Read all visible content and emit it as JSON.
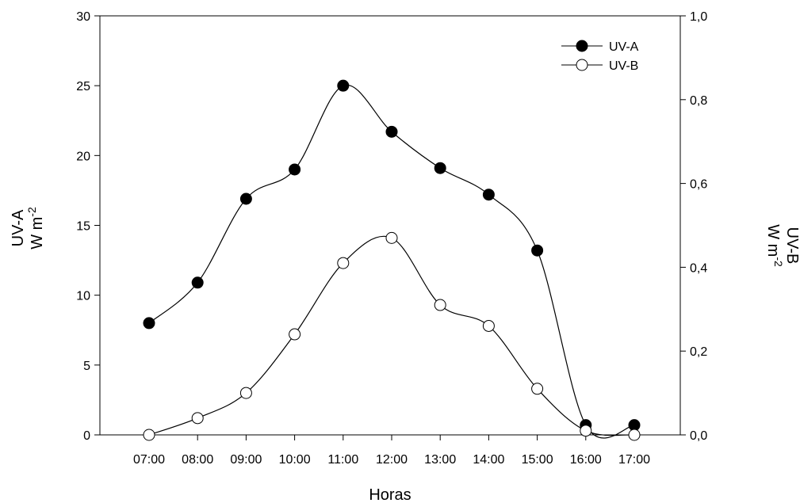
{
  "chart_data": {
    "type": "line",
    "title": "",
    "xlabel": "Horas",
    "categories": [
      "07:00",
      "08:00",
      "09:00",
      "10:00",
      "11:00",
      "12:00",
      "13:00",
      "14:00",
      "15:00",
      "16:00",
      "17:00"
    ],
    "y_left": {
      "label_line1": "UV-A",
      "label_line2_base": "W m",
      "label_line2_sup": "-2",
      "ylim": [
        0,
        30
      ],
      "ticks": [
        "0",
        "5",
        "10",
        "15",
        "20",
        "25",
        "30"
      ]
    },
    "y_right": {
      "label_line1": "UV-B",
      "label_line2_base": "W m",
      "label_line2_sup": "-2",
      "ylim": [
        0,
        1.0
      ],
      "ticks": [
        "0,0",
        "0,2",
        "0,4",
        "0,6",
        "0,8",
        "1,0"
      ]
    },
    "series": [
      {
        "name": "UV-A",
        "axis": "left",
        "marker": "filled-circle",
        "values": [
          8.0,
          10.9,
          16.9,
          19.0,
          25.0,
          21.7,
          19.1,
          17.2,
          13.2,
          0.7,
          0.7
        ]
      },
      {
        "name": "UV-B",
        "axis": "right",
        "marker": "open-circle",
        "values": [
          0.0,
          0.04,
          0.1,
          0.24,
          0.41,
          0.47,
          0.31,
          0.26,
          0.11,
          0.01,
          0.0
        ]
      }
    ],
    "grid": false,
    "legend_position": "top-right"
  }
}
